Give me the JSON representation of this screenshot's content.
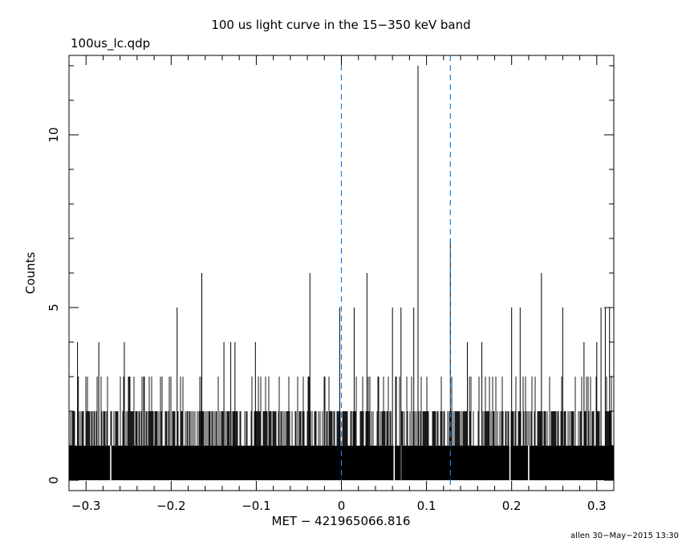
{
  "header": {
    "title": "100 us light curve in the 15−350 keV band",
    "file_label": "100us_lc.qdp"
  },
  "footer": {
    "stamp": "allen 30−May−2015 13:30"
  },
  "colors": {
    "data": "#000000",
    "marker_lines": "#1f7fd4"
  },
  "chart_data": {
    "type": "bar",
    "xlabel": "MET − 421965066.816",
    "ylabel": "Counts",
    "xlim": [
      -0.32,
      0.32
    ],
    "ylim": [
      -0.3,
      12.3
    ],
    "xticks": [
      -0.3,
      -0.2,
      -0.1,
      0,
      0.1,
      0.2,
      0.3
    ],
    "xtick_labels": [
      "−0.3",
      "−0.2",
      "−0.1",
      "0",
      "0.1",
      "0.2",
      "0.3"
    ],
    "yticks": [
      0,
      5,
      10
    ],
    "ytick_labels": [
      "0",
      "5",
      "10"
    ],
    "bin_width": 0.0001,
    "baseline_level": 1,
    "vertical_markers": [
      0,
      0.128
    ],
    "spikes": [
      {
        "x": -0.31,
        "y": 4
      },
      {
        "x": -0.309,
        "y": 3
      },
      {
        "x": -0.285,
        "y": 4
      },
      {
        "x": -0.255,
        "y": 4
      },
      {
        "x": -0.193,
        "y": 5
      },
      {
        "x": -0.164,
        "y": 6
      },
      {
        "x": -0.138,
        "y": 4
      },
      {
        "x": -0.13,
        "y": 4
      },
      {
        "x": -0.125,
        "y": 4
      },
      {
        "x": -0.101,
        "y": 4
      },
      {
        "x": -0.037,
        "y": 6
      },
      {
        "x": -0.002,
        "y": 5
      },
      {
        "x": 0.015,
        "y": 5
      },
      {
        "x": 0.03,
        "y": 6
      },
      {
        "x": 0.06,
        "y": 5
      },
      {
        "x": 0.07,
        "y": 5
      },
      {
        "x": 0.085,
        "y": 5
      },
      {
        "x": 0.09,
        "y": 12
      },
      {
        "x": 0.128,
        "y": 7
      },
      {
        "x": 0.148,
        "y": 4
      },
      {
        "x": 0.165,
        "y": 4
      },
      {
        "x": 0.2,
        "y": 5
      },
      {
        "x": 0.21,
        "y": 5
      },
      {
        "x": 0.235,
        "y": 6
      },
      {
        "x": 0.26,
        "y": 5
      },
      {
        "x": 0.285,
        "y": 4
      },
      {
        "x": 0.3,
        "y": 4
      },
      {
        "x": 0.305,
        "y": 5
      },
      {
        "x": 0.31,
        "y": 5
      },
      {
        "x": 0.315,
        "y": 5
      }
    ],
    "zero_gaps": [
      -0.271,
      0.062,
      0.07,
      0.198,
      0.22
    ]
  }
}
